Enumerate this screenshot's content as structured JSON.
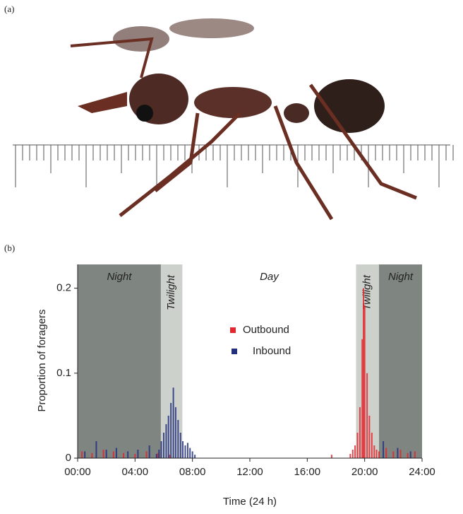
{
  "panel_a": "(a)",
  "chart_data": {
    "type": "bar",
    "panel": "(b)",
    "x_label": "Time (24 h)",
    "y_label": "Proportion of foragers",
    "xlim": [
      0,
      24
    ],
    "ylim": [
      0,
      0.228
    ],
    "xticks": [
      {
        "value": 0,
        "label": "00:00"
      },
      {
        "value": 4,
        "label": "04:00"
      },
      {
        "value": 8,
        "label": "08:00"
      },
      {
        "value": 12,
        "label": "12:00"
      },
      {
        "value": 16,
        "label": "16:00"
      },
      {
        "value": 20,
        "label": "20:00"
      },
      {
        "value": 24,
        "label": "24:00"
      }
    ],
    "yticks": [
      0,
      0.1,
      0.2
    ],
    "regions": [
      {
        "label": "Night",
        "start": 0,
        "end": 5.8,
        "color": "#7f8581"
      },
      {
        "label": "Twilight",
        "start": 5.8,
        "end": 7.3,
        "color": "#cdd1cc"
      },
      {
        "label": "Day",
        "start": 7.3,
        "end": 19.4,
        "color": "#ffffff"
      },
      {
        "label": "Twilight",
        "start": 19.4,
        "end": 21,
        "color": "#cdd1cc"
      },
      {
        "label": "Night",
        "start": 21,
        "end": 24,
        "color": "#7f8581"
      }
    ],
    "series": [
      {
        "name": "Outbound",
        "color": "#e0282e",
        "x": [
          0.3,
          1.0,
          1.8,
          2.5,
          3.2,
          4.0,
          4.8,
          5.6,
          6.4,
          17.7,
          19.0,
          19.17,
          19.33,
          19.5,
          19.67,
          19.83,
          19.92,
          20.0,
          20.17,
          20.33,
          20.5,
          20.67,
          20.83,
          21.0,
          21.5,
          22.0,
          22.5,
          23.0,
          23.5
        ],
        "values": [
          0.008,
          0.006,
          0.01,
          0.008,
          0.006,
          0.005,
          0.008,
          0.006,
          0.004,
          0.004,
          0.005,
          0.01,
          0.015,
          0.03,
          0.06,
          0.14,
          0.2,
          0.18,
          0.1,
          0.05,
          0.03,
          0.015,
          0.01,
          0.008,
          0.012,
          0.008,
          0.01,
          0.006,
          0.008
        ]
      },
      {
        "name": "Inbound",
        "color": "#23307e",
        "x": [
          0.5,
          1.3,
          2.0,
          2.7,
          3.5,
          4.2,
          5.0,
          5.5,
          5.67,
          5.83,
          6.0,
          6.17,
          6.33,
          6.5,
          6.67,
          6.83,
          7.0,
          7.17,
          7.33,
          7.5,
          7.67,
          7.83,
          8.0,
          8.17,
          21.3,
          22.3,
          23.2
        ],
        "values": [
          0.008,
          0.02,
          0.01,
          0.012,
          0.008,
          0.01,
          0.015,
          0.005,
          0.01,
          0.02,
          0.03,
          0.04,
          0.05,
          0.065,
          0.083,
          0.06,
          0.045,
          0.03,
          0.02,
          0.015,
          0.018,
          0.012,
          0.008,
          0.004,
          0.02,
          0.012,
          0.008
        ]
      }
    ]
  }
}
